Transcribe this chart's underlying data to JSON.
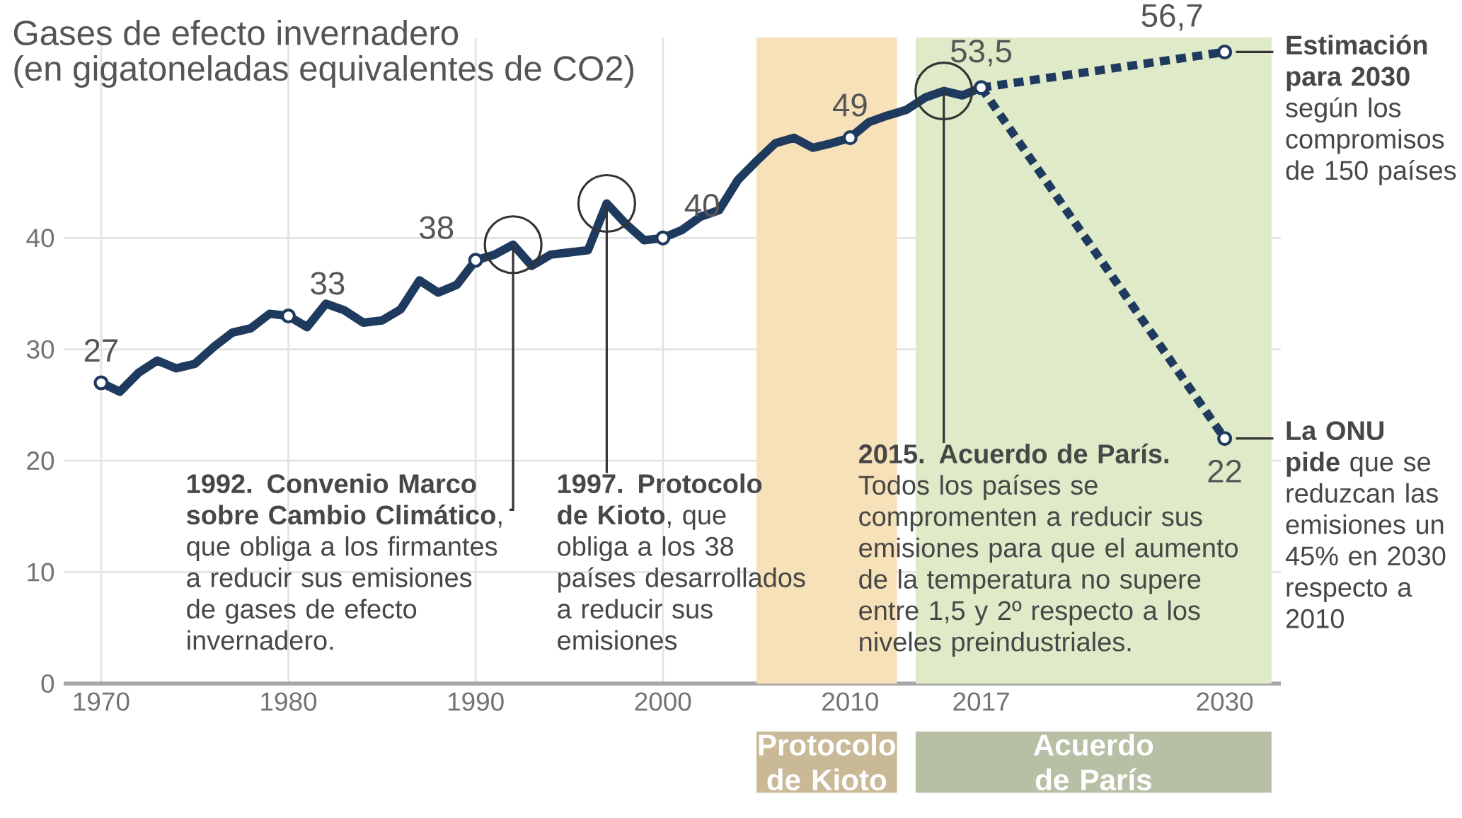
{
  "chart_data": {
    "type": "line",
    "title": "Gases de efecto invernadero",
    "subtitle": "(en gigatoneladas equivalentes de CO2)",
    "xlim": [
      1968,
      2033
    ],
    "xticks": [
      1970,
      1980,
      1990,
      2000,
      2010,
      2017,
      2030
    ],
    "ylim": [
      0,
      58
    ],
    "yticks": [
      0,
      10,
      20,
      30,
      40
    ],
    "grid": true,
    "series": [
      {
        "color": "#1f3a5f",
        "line_style": "solid",
        "x": [
          1970,
          1971,
          1972,
          1973,
          1974,
          1975,
          1976,
          1977,
          1978,
          1979,
          1980,
          1981,
          1982,
          1983,
          1984,
          1985,
          1986,
          1987,
          1988,
          1989,
          1990,
          1991,
          1992,
          1993,
          1994,
          1995,
          1996,
          1997,
          1998,
          1999,
          2000,
          2001,
          2002,
          2003,
          2004,
          2005,
          2006,
          2007,
          2008,
          2009,
          2010,
          2011,
          2012,
          2013,
          2014,
          2015,
          2016,
          2017
        ],
        "values": [
          27,
          26.2,
          27.9,
          29.0,
          28.3,
          28.7,
          30.2,
          31.5,
          31.9,
          33.2,
          33,
          32.0,
          34.1,
          33.5,
          32.4,
          32.6,
          33.6,
          36.2,
          35.1,
          35.8,
          38,
          38.5,
          39.4,
          37.5,
          38.5,
          38.7,
          38.9,
          43.1,
          41.3,
          39.8,
          40,
          40.7,
          41.9,
          42.5,
          45.2,
          46.9,
          48.5,
          49.0,
          48.1,
          48.5,
          49,
          50.4,
          51.0,
          51.5,
          52.6,
          53.2,
          52.8,
          53.5
        ],
        "value_labels": [
          "27",
          null,
          null,
          null,
          null,
          null,
          null,
          null,
          null,
          null,
          "33",
          null,
          null,
          null,
          null,
          null,
          null,
          null,
          null,
          null,
          "38",
          null,
          null,
          null,
          null,
          null,
          null,
          null,
          null,
          null,
          "40",
          null,
          null,
          null,
          null,
          null,
          null,
          null,
          null,
          null,
          "49",
          null,
          null,
          null,
          null,
          null,
          null,
          "53,5"
        ]
      },
      {
        "color": "#1f3a5f",
        "line_style": "dashed",
        "x": [
          2017,
          2030
        ],
        "values": [
          53.5,
          56.7
        ],
        "value_labels": [
          null,
          "56,7"
        ]
      },
      {
        "color": "#1f3a5f",
        "line_style": "dashed",
        "x": [
          2017,
          2030
        ],
        "values": [
          53.5,
          22
        ],
        "value_labels": [
          null,
          "22"
        ]
      }
    ],
    "bands": [
      {
        "axis": "x",
        "from": 2005,
        "to": 2012.5,
        "label": "Protocolo de Kioto",
        "color": "#f7e1b8"
      },
      {
        "axis": "x",
        "from": 2013.5,
        "to": 2032.5,
        "label": "Acuerdo de París",
        "color": "#dfeac8"
      }
    ],
    "annotations": [
      {
        "text": "**1992. Convenio Marco sobre Cambio Climático**, que obliga a los firmantes a reducir sus emisiones de gases de efecto invernadero.",
        "x": 1992,
        "y": 39.4
      },
      {
        "text": "**1997. Protocolo de Kioto**, que obliga a los 38 países desarrollados a reducir sus emisiones",
        "x": 1997,
        "y": 43.1
      },
      {
        "text": "**2015. Acuerdo de París.** Todos los países se compromenten a reducir sus emisiones para que el aumento de la temperatura no supere entre 1,5 y 2º respecto a los niveles preindustriales.",
        "x": 2015,
        "y": 53.2
      },
      {
        "text": "**Estimación para 2030** según los compromisos de 150 países",
        "x": 2030,
        "y": 56.7
      },
      {
        "text": "**La ONU pide** que se reduzcan las emisiones un 45% en 2030 respecto a 2010",
        "x": 2030,
        "y": 22
      }
    ]
  }
}
